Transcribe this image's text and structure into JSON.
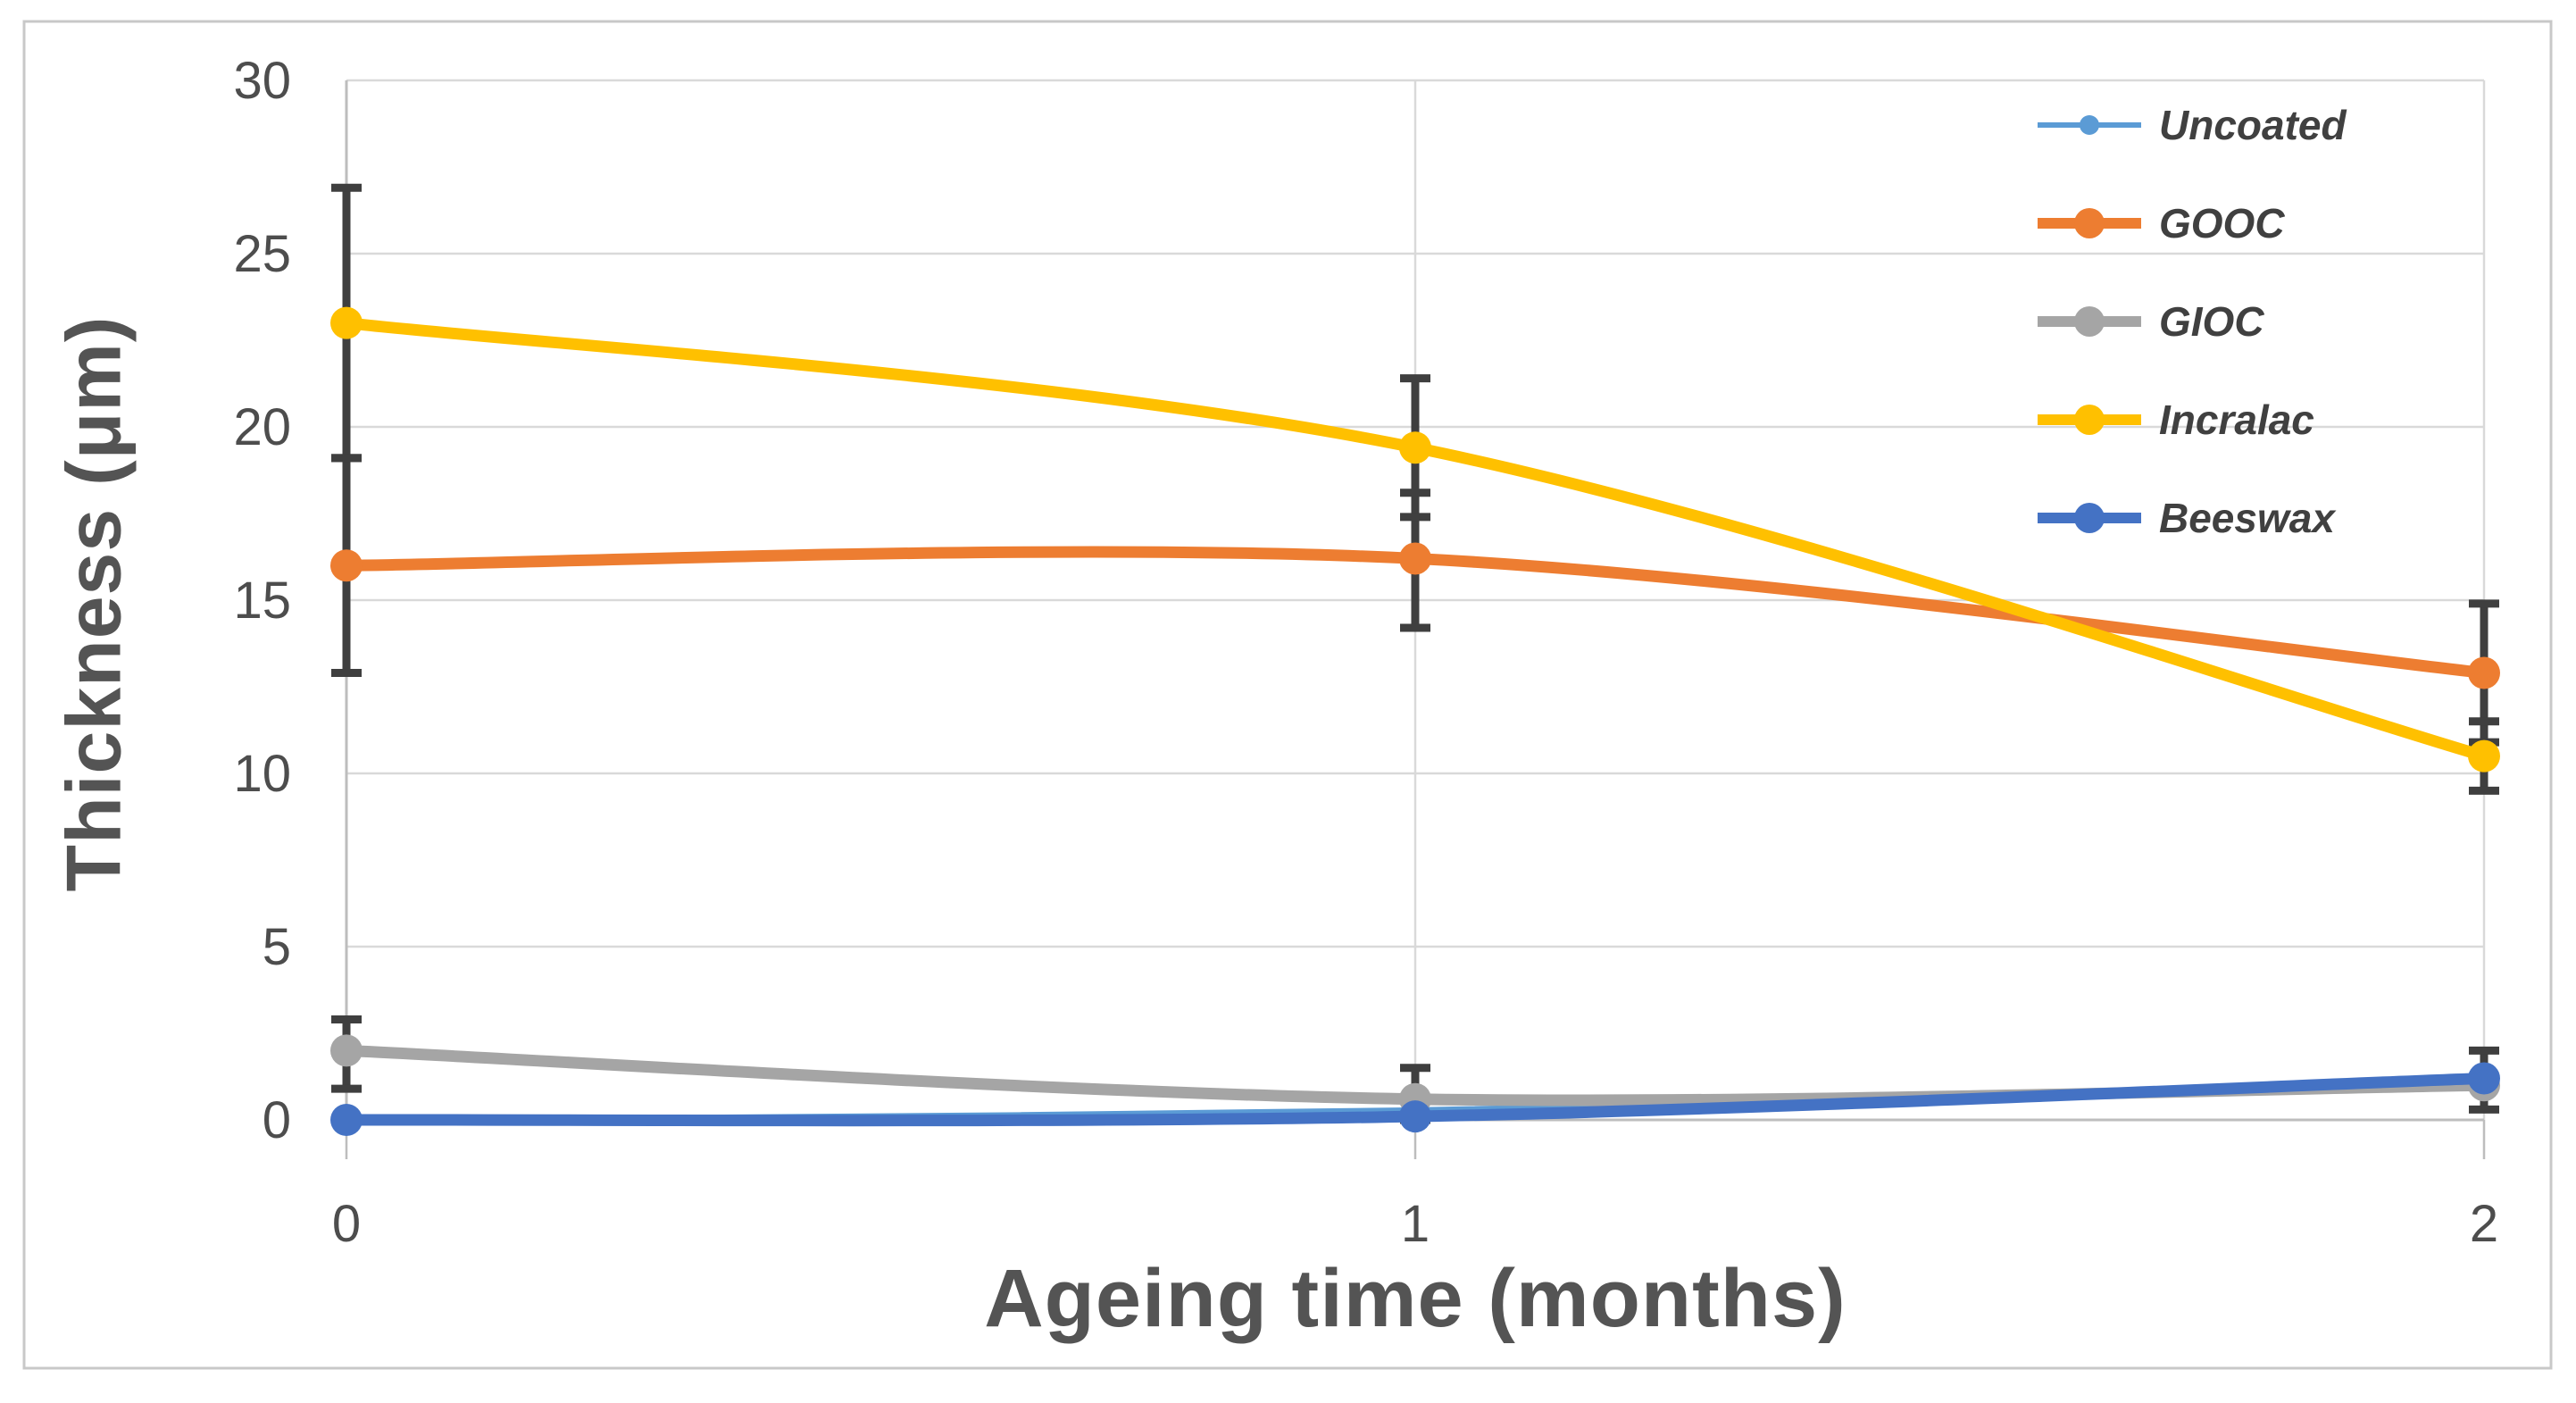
{
  "figure": {
    "background": "#ffffff",
    "frame_color": "#c8c8c8"
  },
  "chart_data": {
    "type": "line",
    "title": "",
    "xlabel": "Ageing time (months)",
    "ylabel": "Thickness (μm)",
    "x": [
      0,
      1,
      2
    ],
    "x_tick_labels": [
      "0",
      "1",
      "2"
    ],
    "y_ticks": [
      0,
      5,
      10,
      15,
      20,
      25,
      30
    ],
    "xlim": [
      0,
      2
    ],
    "ylim": [
      0,
      30
    ],
    "grid": true,
    "legend_position": "top-right-inside",
    "series": [
      {
        "name": "Uncoated",
        "color": "#5B9BD5",
        "line_weight": "thin",
        "values": [
          0,
          0.3,
          1.0
        ],
        "error_bars": [
          null,
          null,
          null
        ]
      },
      {
        "name": "GOOC",
        "color": "#ED7D31",
        "line_weight": "normal",
        "values": [
          16,
          16.2,
          12.9
        ],
        "error_bars": [
          [
            12.9,
            19.1
          ],
          [
            14.2,
            18.1
          ],
          [
            10.9,
            14.9
          ]
        ]
      },
      {
        "name": "GIOC",
        "color": "#A5A5A5",
        "line_weight": "normal",
        "values": [
          2,
          0.6,
          1.0
        ],
        "error_bars": [
          [
            0.9,
            2.9
          ],
          [
            0,
            1.5
          ],
          null
        ]
      },
      {
        "name": "Incralac",
        "color": "#FFC000",
        "line_weight": "normal",
        "values": [
          23,
          19.4,
          10.5
        ],
        "error_bars": [
          [
            19.1,
            26.9
          ],
          [
            17.4,
            21.4
          ],
          [
            9.5,
            11.5
          ]
        ]
      },
      {
        "name": "Beeswax",
        "color": "#4472C4",
        "line_weight": "normal",
        "values": [
          0,
          0.1,
          1.2
        ],
        "error_bars": [
          null,
          null,
          [
            0.3,
            2.0
          ]
        ]
      }
    ],
    "style": {
      "gridline_color": "#d9d9d9",
      "axis_line_color": "#bdbdbd",
      "error_bar_color": "#3f3f3f",
      "tick_label_color": "#4d4d4d",
      "legend_text_color": "#404040"
    }
  }
}
